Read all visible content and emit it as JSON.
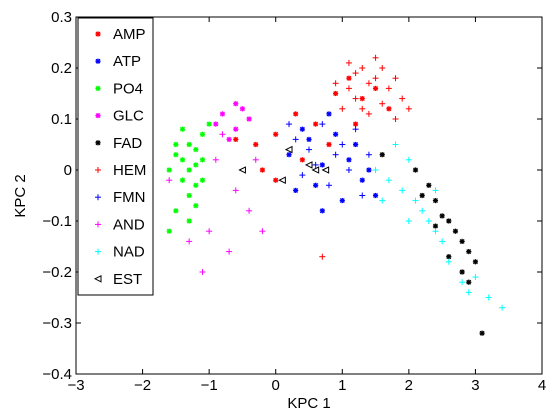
{
  "chart_data": {
    "type": "scatter",
    "title": "",
    "xlabel": "KPC 1",
    "ylabel": "KPC 2",
    "xlim": [
      -3,
      4
    ],
    "ylim": [
      -0.4,
      0.3
    ],
    "xticks": [
      "−3",
      "−2",
      "−1",
      "0",
      "1",
      "2",
      "3",
      "4"
    ],
    "yticks": [
      "−0.4",
      "−0.3",
      "−0.2",
      "−0.1",
      "0",
      "0.1",
      "0.2",
      "0.3"
    ],
    "grid": false,
    "legend_position": "top-left",
    "series": [
      {
        "name": "AMP",
        "color": "#ff0000",
        "marker": "star",
        "points": [
          [
            -0.6,
            0.06
          ],
          [
            -0.3,
            0.05
          ],
          [
            0.0,
            0.07
          ],
          [
            0.3,
            0.11
          ],
          [
            0.6,
            0.09
          ],
          [
            0.9,
            0.15
          ],
          [
            1.1,
            0.18
          ],
          [
            1.3,
            0.14
          ],
          [
            1.5,
            0.16
          ],
          [
            1.7,
            0.12
          ],
          [
            1.2,
            0.09
          ],
          [
            0.4,
            0.02
          ],
          [
            0.0,
            -0.02
          ],
          [
            -0.2,
            0.0
          ],
          [
            0.8,
            0.05
          ]
        ]
      },
      {
        "name": "ATP",
        "color": "#0000ff",
        "marker": "star",
        "points": [
          [
            0.2,
            0.03
          ],
          [
            0.5,
            0.06
          ],
          [
            0.7,
            0.01
          ],
          [
            0.9,
            0.07
          ],
          [
            1.1,
            0.02
          ],
          [
            1.3,
            -0.02
          ],
          [
            1.5,
            -0.05
          ],
          [
            0.6,
            -0.03
          ],
          [
            0.8,
            0.11
          ],
          [
            1.0,
            -0.06
          ],
          [
            0.4,
            0.08
          ],
          [
            1.2,
            0.05
          ],
          [
            0.3,
            -0.04
          ],
          [
            1.4,
            0.0
          ],
          [
            0.7,
            -0.08
          ]
        ]
      },
      {
        "name": "PO4",
        "color": "#00ff00",
        "marker": "star",
        "points": [
          [
            -1.6,
            0.0
          ],
          [
            -1.5,
            0.03
          ],
          [
            -1.4,
            -0.02
          ],
          [
            -1.3,
            0.05
          ],
          [
            -1.2,
            0.01
          ],
          [
            -1.1,
            0.07
          ],
          [
            -1.3,
            -0.05
          ],
          [
            -1.2,
            -0.03
          ],
          [
            -1.4,
            0.08
          ],
          [
            -1.1,
            0.02
          ],
          [
            -1.5,
            -0.08
          ],
          [
            -1.3,
            0.0
          ],
          [
            -1.2,
            0.04
          ],
          [
            -1.4,
            0.02
          ],
          [
            -1.1,
            -0.02
          ],
          [
            -1.6,
            -0.12
          ],
          [
            -1.3,
            -0.1
          ],
          [
            -1.0,
            0.09
          ],
          [
            -1.5,
            0.05
          ],
          [
            -1.2,
            -0.07
          ]
        ]
      },
      {
        "name": "GLC",
        "color": "#ff00ff",
        "marker": "star",
        "points": [
          [
            -0.8,
            0.11
          ],
          [
            -0.6,
            0.08
          ],
          [
            -0.5,
            0.12
          ],
          [
            -0.7,
            0.06
          ],
          [
            -0.9,
            0.09
          ],
          [
            -0.4,
            0.1
          ],
          [
            -0.6,
            0.13
          ]
        ]
      },
      {
        "name": "FAD",
        "color": "#000000",
        "marker": "star",
        "points": [
          [
            2.1,
            0.0
          ],
          [
            2.3,
            -0.03
          ],
          [
            2.4,
            -0.06
          ],
          [
            2.5,
            -0.09
          ],
          [
            2.6,
            -0.1
          ],
          [
            2.7,
            -0.12
          ],
          [
            2.8,
            -0.14
          ],
          [
            2.9,
            -0.16
          ],
          [
            3.0,
            -0.18
          ],
          [
            2.8,
            -0.2
          ],
          [
            2.6,
            -0.17
          ],
          [
            2.9,
            -0.22
          ],
          [
            3.1,
            -0.32
          ],
          [
            2.2,
            -0.05
          ],
          [
            2.4,
            -0.11
          ],
          [
            1.6,
            0.03
          ]
        ]
      },
      {
        "name": "HEM",
        "color": "#ff0000",
        "marker": "plus",
        "points": [
          [
            0.9,
            0.17
          ],
          [
            1.1,
            0.21
          ],
          [
            1.2,
            0.19
          ],
          [
            1.3,
            0.2
          ],
          [
            1.4,
            0.17
          ],
          [
            1.5,
            0.18
          ],
          [
            1.6,
            0.2
          ],
          [
            1.7,
            0.16
          ],
          [
            1.8,
            0.18
          ],
          [
            1.9,
            0.14
          ],
          [
            1.0,
            0.12
          ],
          [
            1.2,
            0.14
          ],
          [
            1.4,
            0.11
          ],
          [
            1.6,
            0.13
          ],
          [
            1.8,
            0.1
          ],
          [
            1.1,
            0.16
          ],
          [
            1.5,
            0.22
          ],
          [
            1.3,
            0.12
          ],
          [
            0.7,
            -0.17
          ],
          [
            2.0,
            0.12
          ]
        ]
      },
      {
        "name": "FMN",
        "color": "#0000ff",
        "marker": "plus",
        "points": [
          [
            0.3,
            0.06
          ],
          [
            0.5,
            0.04
          ],
          [
            0.7,
            0.09
          ],
          [
            0.9,
            0.03
          ],
          [
            1.1,
            0.0
          ],
          [
            0.6,
            0.01
          ],
          [
            0.8,
            -0.03
          ],
          [
            1.0,
            0.05
          ],
          [
            1.2,
            0.08
          ],
          [
            0.4,
            -0.01
          ],
          [
            1.3,
            -0.05
          ],
          [
            0.2,
            0.09
          ],
          [
            1.4,
            0.03
          ]
        ]
      },
      {
        "name": "AND",
        "color": "#ff00ff",
        "marker": "plus",
        "points": [
          [
            -1.9,
            0.04
          ],
          [
            -1.6,
            -0.02
          ],
          [
            -1.3,
            -0.14
          ],
          [
            -1.0,
            -0.12
          ],
          [
            -0.7,
            -0.16
          ],
          [
            -0.4,
            -0.08
          ],
          [
            -0.2,
            -0.12
          ],
          [
            -0.6,
            -0.04
          ],
          [
            -0.9,
            0.02
          ],
          [
            -1.1,
            -0.2
          ],
          [
            -0.8,
            0.07
          ],
          [
            -0.3,
            0.02
          ]
        ]
      },
      {
        "name": "NAD",
        "color": "#00ffff",
        "marker": "plus",
        "points": [
          [
            1.5,
            0.0
          ],
          [
            1.7,
            -0.02
          ],
          [
            1.9,
            -0.04
          ],
          [
            2.0,
            0.02
          ],
          [
            2.1,
            -0.06
          ],
          [
            2.2,
            -0.08
          ],
          [
            2.3,
            -0.1
          ],
          [
            2.4,
            -0.12
          ],
          [
            2.5,
            -0.14
          ],
          [
            2.6,
            -0.18
          ],
          [
            2.8,
            -0.22
          ],
          [
            3.0,
            -0.21
          ],
          [
            3.2,
            -0.25
          ],
          [
            3.4,
            -0.27
          ],
          [
            1.8,
            0.05
          ],
          [
            2.4,
            -0.04
          ],
          [
            1.6,
            -0.06
          ],
          [
            2.0,
            -0.1
          ],
          [
            2.9,
            -0.24
          ]
        ]
      },
      {
        "name": "EST",
        "color": "#000000",
        "marker": "triangle-left",
        "points": [
          [
            -0.5,
            0.0
          ],
          [
            0.1,
            -0.02
          ],
          [
            0.2,
            0.04
          ],
          [
            0.5,
            0.01
          ],
          [
            0.6,
            0.0
          ],
          [
            0.75,
            0.0
          ]
        ]
      }
    ]
  }
}
